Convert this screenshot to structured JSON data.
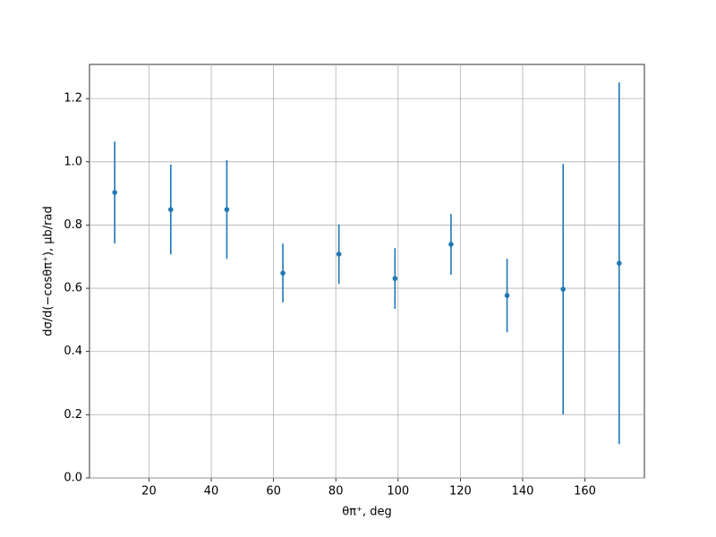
{
  "chart_data": {
    "type": "errorbar",
    "x_label": "θπ⁺, deg",
    "y_label": "dσ/d(−cosθπ⁺), μb/rad",
    "x": [
      9,
      27,
      45,
      63,
      81,
      99,
      117,
      135,
      153,
      171
    ],
    "series": [
      {
        "color": "#1f77b4",
        "values": [
          0.903,
          0.849,
          0.849,
          0.648,
          0.708,
          0.631,
          0.739,
          0.577,
          0.597,
          0.679
        ],
        "errors": [
          0.161,
          0.142,
          0.156,
          0.093,
          0.094,
          0.096,
          0.096,
          0.116,
          0.396,
          0.572
        ]
      }
    ],
    "xlim": [
      0.9,
      179.1
    ],
    "ylim": [
      0,
      1.308
    ],
    "xticks": [
      20,
      40,
      60,
      80,
      100,
      120,
      140,
      160
    ],
    "yticks": [
      {
        "value": 0,
        "label": "0.0"
      },
      0.2,
      0.4,
      0.6,
      0.8,
      {
        "value": 1,
        "label": "1.0"
      },
      1.2
    ],
    "grid": true
  }
}
